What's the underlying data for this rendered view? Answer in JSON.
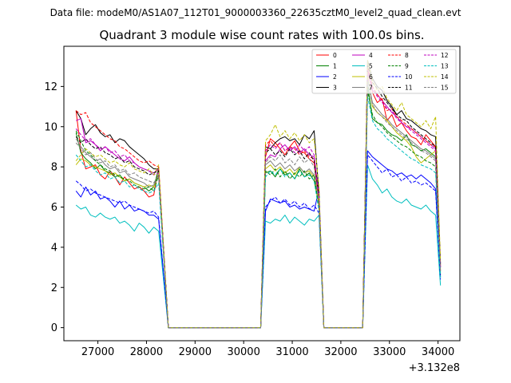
{
  "figure": {
    "suptitle": "Data file: modeM0/AS1A07_112T01_9000003360_22635cztM0_level2_quad_clean.evt"
  },
  "chart_data": {
    "type": "line",
    "title": "Quadrant 3 module wise count rates with 100.0s bins.",
    "xlabel": "",
    "ylabel": "",
    "x_offset_label": "+3.132e8",
    "xlim": [
      26300,
      34450
    ],
    "ylim": [
      -0.65,
      14.0
    ],
    "xticks": [
      27000,
      28000,
      29000,
      30000,
      31000,
      32000,
      33000,
      34000
    ],
    "yticks": [
      0,
      2,
      4,
      6,
      8,
      10,
      12
    ],
    "legend_position": "top-right",
    "segments": [
      {
        "x_start": 26550,
        "x_end": 28350,
        "step": 100,
        "jump_to": 28450,
        "level_multiplier": 1.0
      },
      {
        "x_start": 30450,
        "x_end": 31550,
        "step": 100,
        "jump_to": 31650,
        "level_multiplier": 1.0
      },
      {
        "x_start": 32550,
        "x_end": 34050,
        "step": 100,
        "jump_to": null,
        "level_multiplier": 1.0
      }
    ],
    "gap_value": 0,
    "series": [
      {
        "name": "0",
        "color": "#ff0000",
        "dash": "solid",
        "seg1": [
          10.8,
          8.8,
          7.9,
          8.0,
          8.1,
          7.6,
          7.4,
          7.8,
          7.5,
          7.1,
          7.5,
          7.2,
          6.9,
          7.0,
          6.8,
          6.5,
          6.6,
          8.0
        ],
        "seg2": [
          8.5,
          9.4,
          9.2,
          8.9,
          8.6,
          9.0,
          9.3,
          8.8,
          8.7,
          8.4,
          8.2,
          6.3
        ],
        "seg3": [
          12.9,
          11.7,
          11.2,
          11.4,
          10.3,
          10.6,
          10.0,
          10.2,
          9.8,
          9.5,
          9.4,
          9.1,
          9.6,
          9.3,
          9.0,
          3.1
        ]
      },
      {
        "name": "1",
        "color": "#008000",
        "dash": "solid",
        "seg1": [
          9.7,
          8.7,
          8.4,
          8.2,
          7.9,
          8.1,
          7.8,
          7.7,
          7.5,
          7.6,
          7.3,
          7.4,
          7.2,
          7.1,
          7.0,
          6.8,
          7.0,
          7.9
        ],
        "seg2": [
          7.7,
          7.8,
          7.5,
          7.9,
          7.6,
          7.7,
          7.4,
          7.9,
          7.5,
          7.7,
          7.3,
          6.1
        ],
        "seg3": [
          12.1,
          10.4,
          10.2,
          10.1,
          9.8,
          9.6,
          9.5,
          9.3,
          9.6,
          9.1,
          9.0,
          8.8,
          8.9,
          8.7,
          8.5,
          2.8
        ]
      },
      {
        "name": "2",
        "color": "#0000ff",
        "dash": "solid",
        "seg1": [
          6.8,
          6.5,
          7.0,
          6.6,
          6.8,
          6.4,
          6.5,
          6.3,
          6.0,
          6.3,
          5.9,
          6.1,
          5.8,
          5.9,
          5.8,
          5.6,
          5.6,
          5.4
        ],
        "seg2": [
          5.8,
          6.4,
          6.3,
          6.2,
          6.3,
          6.0,
          6.1,
          5.9,
          6.0,
          5.9,
          5.8,
          6.9
        ],
        "seg3": [
          8.8,
          8.5,
          8.3,
          8.1,
          7.9,
          7.8,
          7.6,
          7.7,
          7.5,
          7.6,
          7.4,
          7.6,
          7.4,
          7.2,
          6.9,
          2.5
        ]
      },
      {
        "name": "3",
        "color": "#000000",
        "dash": "solid",
        "seg1": [
          10.8,
          10.4,
          9.6,
          9.9,
          10.1,
          9.7,
          9.5,
          9.6,
          9.2,
          9.4,
          9.3,
          9.0,
          8.8,
          8.6,
          8.4,
          8.1,
          7.9,
          7.9
        ],
        "seg2": [
          9.0,
          8.9,
          9.2,
          9.4,
          9.5,
          9.3,
          9.4,
          9.1,
          9.6,
          9.4,
          9.8,
          6.7
        ],
        "seg3": [
          13.3,
          12.4,
          12.0,
          11.8,
          11.3,
          11.0,
          10.6,
          10.8,
          10.4,
          10.3,
          10.1,
          9.9,
          9.8,
          9.6,
          9.5,
          3.2
        ]
      },
      {
        "name": "4",
        "color": "#bf00bf",
        "dash": "solid",
        "seg1": [
          10.3,
          10.4,
          9.2,
          9.3,
          9.1,
          8.8,
          9.0,
          8.8,
          8.6,
          8.4,
          8.3,
          8.5,
          8.2,
          8.0,
          7.9,
          7.8,
          7.7,
          7.9
        ],
        "seg2": [
          8.3,
          8.6,
          8.5,
          8.9,
          9.1,
          8.8,
          9.0,
          8.7,
          8.9,
          8.6,
          8.5,
          6.5
        ],
        "seg3": [
          12.8,
          11.8,
          11.6,
          11.3,
          11.0,
          10.7,
          10.5,
          10.2,
          10.0,
          9.9,
          9.7,
          9.5,
          9.3,
          9.1,
          8.9,
          3.0
        ]
      },
      {
        "name": "5",
        "color": "#00bfbf",
        "dash": "solid",
        "seg1": [
          6.1,
          5.9,
          6.0,
          5.6,
          5.5,
          5.7,
          5.5,
          5.4,
          5.5,
          5.2,
          5.3,
          5.1,
          4.8,
          5.2,
          5.0,
          4.7,
          5.0,
          4.8
        ],
        "seg2": [
          5.3,
          5.2,
          5.4,
          5.3,
          5.6,
          5.2,
          5.5,
          5.3,
          5.1,
          5.4,
          5.3,
          5.6
        ],
        "seg3": [
          8.1,
          7.4,
          7.1,
          6.7,
          6.9,
          6.5,
          6.3,
          6.2,
          6.4,
          6.1,
          6.0,
          5.9,
          6.1,
          5.8,
          5.6,
          2.1
        ]
      },
      {
        "name": "6",
        "color": "#bfbf00",
        "dash": "solid",
        "seg1": [
          8.1,
          8.4,
          8.3,
          8.1,
          8.0,
          7.9,
          7.8,
          7.6,
          7.7,
          7.5,
          7.3,
          7.4,
          7.2,
          7.1,
          7.0,
          7.1,
          7.0,
          7.6
        ],
        "seg2": [
          7.9,
          8.1,
          7.8,
          8.0,
          7.7,
          7.9,
          7.6,
          8.0,
          7.7,
          7.8,
          7.5,
          6.0
        ],
        "seg3": [
          12.6,
          11.0,
          10.7,
          10.5,
          10.3,
          10.0,
          9.7,
          9.5,
          9.3,
          9.0,
          8.5,
          8.2,
          8.4,
          8.6,
          8.8,
          2.9
        ]
      },
      {
        "name": "7",
        "color": "#808080",
        "dash": "solid",
        "seg1": [
          9.4,
          9.0,
          8.7,
          8.5,
          8.3,
          8.4,
          8.1,
          7.9,
          8.0,
          7.7,
          7.8,
          7.5,
          7.4,
          7.3,
          7.2,
          7.0,
          7.1,
          7.5
        ],
        "seg2": [
          8.1,
          8.3,
          8.0,
          8.2,
          7.9,
          8.1,
          7.8,
          8.0,
          7.7,
          7.9,
          7.6,
          6.3
        ],
        "seg3": [
          12.4,
          11.2,
          10.9,
          10.6,
          10.4,
          10.1,
          9.9,
          9.7,
          9.5,
          9.3,
          9.1,
          8.9,
          8.8,
          8.6,
          8.4,
          2.7
        ]
      },
      {
        "name": "8",
        "color": "#ff0000",
        "dash": "dashed",
        "seg1": [
          10.8,
          10.6,
          10.7,
          10.2,
          10.0,
          9.8,
          9.6,
          9.4,
          9.3,
          9.0,
          8.9,
          8.7,
          8.5,
          8.3,
          8.2,
          8.3,
          8.1,
          8.0
        ],
        "seg2": [
          9.1,
          9.3,
          9.0,
          9.2,
          8.8,
          9.0,
          8.9,
          8.6,
          8.8,
          8.5,
          8.4,
          6.4
        ],
        "seg3": [
          13.0,
          12.0,
          11.6,
          11.3,
          10.8,
          10.9,
          10.5,
          10.3,
          10.1,
          9.9,
          9.7,
          9.5,
          9.3,
          9.1,
          9.0,
          3.0
        ]
      },
      {
        "name": "9",
        "color": "#008000",
        "dash": "dashed",
        "seg1": [
          9.8,
          9.3,
          8.8,
          8.6,
          8.3,
          8.1,
          7.9,
          7.8,
          7.6,
          7.5,
          7.4,
          7.3,
          7.1,
          7.0,
          6.9,
          7.0,
          6.8,
          7.6
        ],
        "seg2": [
          7.8,
          7.6,
          7.9,
          7.5,
          7.8,
          7.4,
          7.7,
          7.5,
          7.8,
          7.4,
          7.6,
          5.9
        ],
        "seg3": [
          11.8,
          10.6,
          10.2,
          10.0,
          9.7,
          9.5,
          9.3,
          9.1,
          9.0,
          8.8,
          8.6,
          8.5,
          8.3,
          8.2,
          8.0,
          2.6
        ]
      },
      {
        "name": "10",
        "color": "#0000ff",
        "dash": "dashed",
        "seg1": [
          7.3,
          7.1,
          6.8,
          6.9,
          6.7,
          6.6,
          6.5,
          6.4,
          6.3,
          6.2,
          6.3,
          6.1,
          6.0,
          5.9,
          5.8,
          5.7,
          5.8,
          5.5
        ],
        "seg2": [
          6.0,
          6.3,
          6.5,
          6.2,
          6.4,
          6.1,
          6.3,
          6.0,
          6.2,
          5.9,
          6.1,
          5.7
        ],
        "seg3": [
          8.6,
          8.3,
          8.0,
          7.7,
          7.9,
          7.5,
          7.6,
          7.3,
          7.5,
          7.2,
          7.3,
          7.1,
          7.2,
          7.0,
          6.8,
          2.4
        ]
      },
      {
        "name": "11",
        "color": "#000000",
        "dash": "dashed",
        "seg1": [
          9.5,
          9.2,
          9.4,
          9.1,
          8.9,
          9.0,
          8.7,
          8.6,
          8.4,
          8.5,
          8.2,
          8.3,
          8.0,
          7.9,
          7.8,
          7.6,
          7.7,
          7.8
        ],
        "seg2": [
          8.7,
          8.9,
          8.6,
          8.8,
          8.5,
          8.9,
          8.6,
          8.8,
          8.4,
          8.7,
          8.3,
          6.6
        ],
        "seg3": [
          13.1,
          12.2,
          11.9,
          11.5,
          11.2,
          10.9,
          10.6,
          10.4,
          10.3,
          10.0,
          9.8,
          9.6,
          9.4,
          9.2,
          9.0,
          3.1
        ]
      },
      {
        "name": "12",
        "color": "#bf00bf",
        "dash": "dashed",
        "seg1": [
          9.9,
          9.6,
          9.3,
          9.4,
          9.1,
          8.9,
          9.0,
          8.7,
          8.8,
          8.5,
          8.6,
          8.3,
          8.2,
          8.0,
          7.9,
          7.8,
          7.6,
          7.7
        ],
        "seg2": [
          8.8,
          9.1,
          8.9,
          9.2,
          8.8,
          9.0,
          8.7,
          9.1,
          8.8,
          9.0,
          8.6,
          6.5
        ],
        "seg3": [
          12.7,
          11.9,
          11.5,
          11.2,
          10.9,
          10.8,
          10.4,
          10.2,
          10.0,
          9.8,
          9.6,
          9.4,
          9.2,
          9.0,
          8.8,
          3.0
        ]
      },
      {
        "name": "13",
        "color": "#00bfbf",
        "dash": "dashed",
        "seg1": [
          8.6,
          8.3,
          8.0,
          8.1,
          7.8,
          7.6,
          7.7,
          7.4,
          7.5,
          7.2,
          7.3,
          7.0,
          7.1,
          6.9,
          6.8,
          6.7,
          6.8,
          7.2
        ],
        "seg2": [
          7.5,
          7.8,
          7.6,
          7.9,
          7.5,
          7.7,
          7.4,
          7.8,
          7.5,
          7.6,
          7.3,
          5.8
        ],
        "seg3": [
          11.5,
          10.3,
          9.9,
          9.7,
          9.4,
          9.2,
          9.0,
          8.8,
          8.6,
          8.4,
          8.3,
          8.1,
          8.0,
          7.9,
          7.7,
          2.5
        ]
      },
      {
        "name": "14",
        "color": "#bfbf00",
        "dash": "dashed",
        "seg1": [
          8.3,
          8.6,
          8.9,
          8.7,
          8.5,
          8.6,
          8.4,
          8.2,
          8.3,
          8.1,
          8.0,
          8.2,
          7.9,
          7.8,
          7.7,
          7.9,
          7.6,
          8.1
        ],
        "seg2": [
          9.3,
          9.6,
          10.1,
          9.5,
          9.8,
          9.4,
          9.7,
          9.3,
          9.6,
          9.2,
          9.4,
          7.0
        ],
        "seg3": [
          13.3,
          12.3,
          11.8,
          12.0,
          11.4,
          11.1,
          10.8,
          11.2,
          10.6,
          10.4,
          10.2,
          10.0,
          10.3,
          9.9,
          10.5,
          3.3
        ]
      },
      {
        "name": "15",
        "color": "#808080",
        "dash": "dashed",
        "seg1": [
          9.2,
          8.9,
          8.6,
          8.7,
          8.4,
          8.2,
          8.3,
          8.0,
          8.1,
          7.8,
          7.9,
          7.6,
          7.7,
          7.5,
          7.4,
          7.3,
          7.2,
          7.6
        ],
        "seg2": [
          8.2,
          8.5,
          8.3,
          8.6,
          8.2,
          8.4,
          8.1,
          8.5,
          8.2,
          8.4,
          8.0,
          6.2
        ],
        "seg3": [
          12.2,
          11.1,
          10.7,
          10.5,
          10.2,
          10.0,
          9.8,
          9.6,
          9.4,
          9.2,
          9.0,
          8.8,
          8.7,
          8.5,
          8.3,
          2.8
        ]
      }
    ]
  }
}
